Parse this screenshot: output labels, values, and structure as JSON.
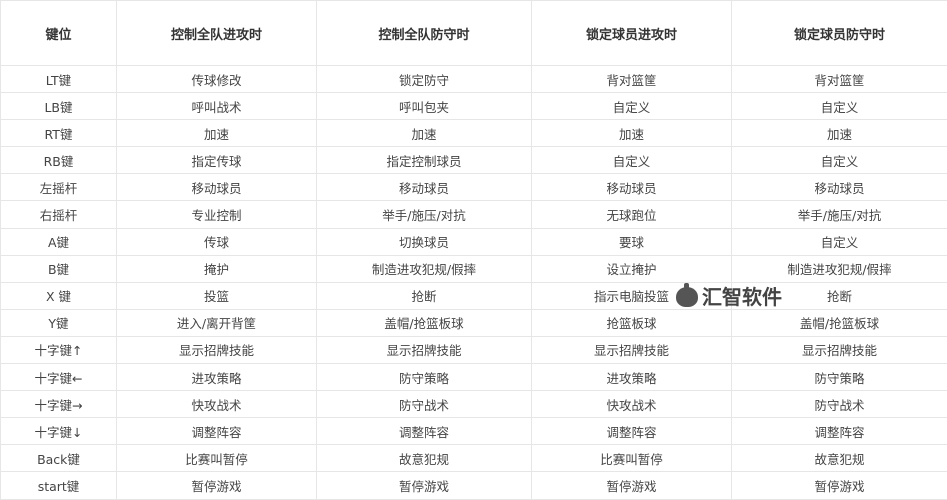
{
  "headers": [
    "键位",
    "控制全队进攻时",
    "控制全队防守时",
    "锁定球员进攻时",
    "锁定球员防守时"
  ],
  "rows": [
    [
      "LT键",
      "传球修改",
      "锁定防守",
      "背对篮筐",
      "背对篮筐"
    ],
    [
      "LB键",
      "呼叫战术",
      "呼叫包夹",
      "自定义",
      "自定义"
    ],
    [
      "RT键",
      "加速",
      "加速",
      "加速",
      "加速"
    ],
    [
      "RB键",
      "指定传球",
      "指定控制球员",
      "自定义",
      "自定义"
    ],
    [
      "左摇杆",
      "移动球员",
      "移动球员",
      "移动球员",
      "移动球员"
    ],
    [
      "右摇杆",
      "专业控制",
      "举手/施压/对抗",
      "无球跑位",
      "举手/施压/对抗"
    ],
    [
      "A键",
      "传球",
      "切换球员",
      "要球",
      "自定义"
    ],
    [
      "B键",
      "掩护",
      "制造进攻犯规/假摔",
      "设立掩护",
      "制造进攻犯规/假摔"
    ],
    [
      "X 键",
      "投篮",
      "抢断",
      "指示电脑投篮",
      "抢断"
    ],
    [
      "Y键",
      "进入/离开背筐",
      "盖帽/抢篮板球",
      "抢篮板球",
      "盖帽/抢篮板球"
    ],
    [
      "十字键↑",
      "显示招牌技能",
      "显示招牌技能",
      "显示招牌技能",
      "显示招牌技能"
    ],
    [
      "十字键←",
      "进攻策略",
      "防守策略",
      "进攻策略",
      "防守策略"
    ],
    [
      "十字键→",
      "快攻战术",
      "防守战术",
      "快攻战术",
      "防守战术"
    ],
    [
      "十字键↓",
      "调整阵容",
      "调整阵容",
      "调整阵容",
      "调整阵容"
    ],
    [
      "Back键",
      "比赛叫暂停",
      "故意犯规",
      "比赛叫暂停",
      "故意犯规"
    ],
    [
      "start键",
      "暂停游戏",
      "暂停游戏",
      "暂停游戏",
      "暂停游戏"
    ]
  ],
  "watermark": {
    "text": "汇智软件",
    "icon": "gamepad-icon"
  }
}
